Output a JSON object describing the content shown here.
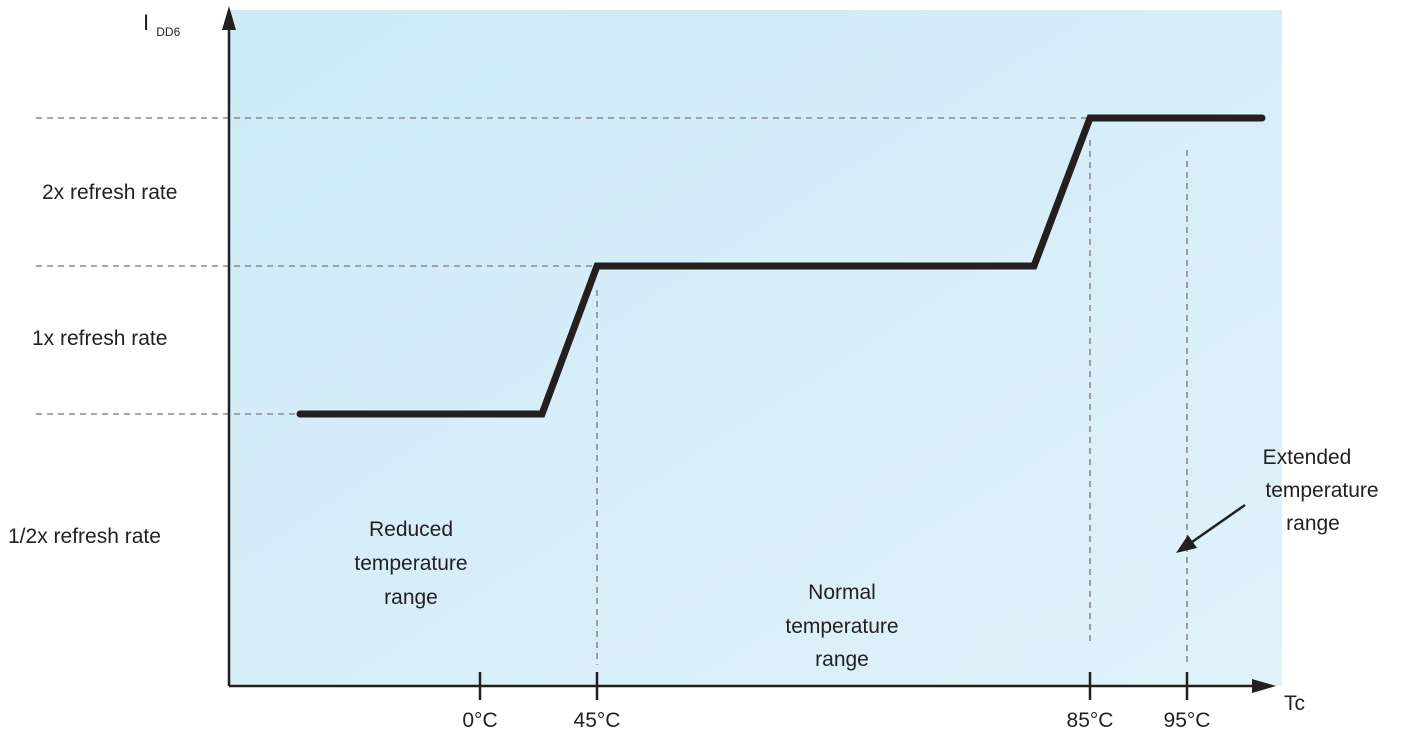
{
  "colors": {
    "background_top": "#cfe9f5",
    "background_bottom": "#dff1f9",
    "line": "#231f20",
    "dashed": "#8a8a8a"
  },
  "axes": {
    "y_label_main": "I",
    "y_label_sub": "DD6",
    "x_label": "Tc"
  },
  "levels": {
    "level_2x": "2x refresh rate",
    "level_1x": "1x refresh rate",
    "level_half": "1/2x refresh rate"
  },
  "ticks": [
    "0°C",
    "45°C",
    "85°C",
    "95°C"
  ],
  "regions": {
    "reduced": [
      "Reduced",
      "temperature",
      "range"
    ],
    "normal": [
      "Normal",
      "temperature",
      "range"
    ],
    "extended": [
      "Extended",
      "temperature",
      "range"
    ]
  }
}
